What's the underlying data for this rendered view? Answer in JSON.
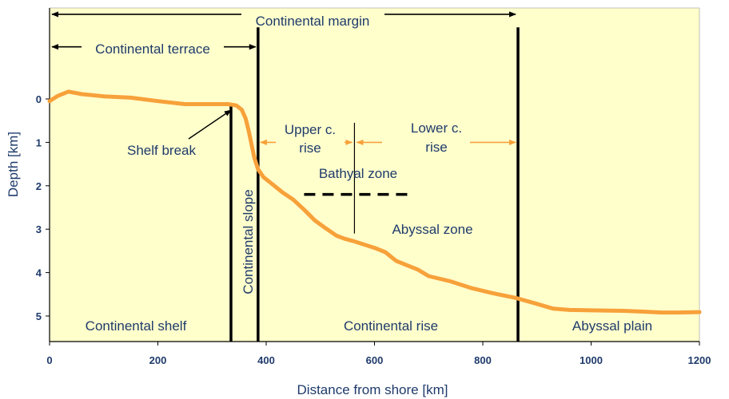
{
  "chart_data": {
    "type": "line",
    "xlabel": "Distance from shore [km]",
    "ylabel": "Depth [km]",
    "xlim": [
      0,
      1200
    ],
    "ylim": [
      0,
      5.6
    ],
    "x_ticks": [
      "0",
      "200",
      "400",
      "600",
      "800",
      "1000",
      "1200"
    ],
    "y_ticks": [
      "0",
      "1",
      "2",
      "3",
      "4",
      "5"
    ],
    "grid": false,
    "background": "#ffffcc",
    "profile_color": "#f7a13a",
    "profile": {
      "x": [
        0,
        15,
        35,
        60,
        100,
        150,
        200,
        250,
        300,
        330,
        345,
        355,
        362,
        368,
        373,
        378,
        385,
        395,
        410,
        430,
        450,
        470,
        490,
        510,
        530,
        545,
        560,
        580,
        600,
        620,
        640,
        660,
        680,
        700,
        740,
        780,
        820,
        860,
        900,
        930,
        960,
        1000,
        1060,
        1100,
        1130,
        1160,
        1200
      ],
      "y": [
        0.05,
        -0.07,
        -0.17,
        -0.11,
        -0.06,
        -0.03,
        0.05,
        0.12,
        0.12,
        0.12,
        0.15,
        0.25,
        0.45,
        0.75,
        1.05,
        1.35,
        1.62,
        1.8,
        1.95,
        2.15,
        2.32,
        2.55,
        2.8,
        2.98,
        3.15,
        3.22,
        3.27,
        3.35,
        3.43,
        3.53,
        3.73,
        3.83,
        3.93,
        4.08,
        4.2,
        4.36,
        4.48,
        4.58,
        4.72,
        4.83,
        4.86,
        4.87,
        4.88,
        4.9,
        4.92,
        4.92,
        4.91
      ]
    },
    "boundaries": [
      {
        "x": 335,
        "top_depth": 0.12
      },
      {
        "x": 385,
        "top_depth": -1.65
      },
      {
        "x": 865,
        "top_depth": -1.65
      }
    ],
    "thin_divider": {
      "x": 563,
      "from_depth": 0.55,
      "to_depth": 3.1
    },
    "bathyal_abyssal_line": {
      "x1": 470,
      "x2": 665,
      "depth": 2.2
    },
    "spans": [
      {
        "label": "Continental margin",
        "x1": 0,
        "x2": 865,
        "depth": -1.95,
        "color": "black"
      },
      {
        "label": "Continental terrace",
        "x1": 0,
        "x2": 385,
        "depth": -1.2,
        "color": "black"
      },
      {
        "label": "Upper c. rise",
        "x1": 385,
        "x2": 563,
        "depth": 1.0,
        "color": "orange"
      },
      {
        "label": "Lower c. rise",
        "x1": 563,
        "x2": 865,
        "depth": 1.0,
        "color": "orange"
      }
    ],
    "annotations": [
      "Shelf break",
      "Continental slope",
      "Bathyal zone",
      "Abyssal zone",
      "Continental shelf",
      "Continental rise",
      "Abyssal plain"
    ]
  },
  "labels": {
    "continental_margin": "Continental margin",
    "continental_terrace": "Continental terrace",
    "upper_rise_1": "Upper c.",
    "upper_rise_2": "rise",
    "lower_rise_1": "Lower c.",
    "lower_rise_2": "rise",
    "shelf_break": "Shelf break",
    "continental_slope": "Continental slope",
    "bathyal_zone": "Bathyal zone",
    "abyssal_zone": "Abyssal zone",
    "continental_shelf": "Continental shelf",
    "continental_rise": "Continental rise",
    "abyssal_plain": "Abyssal plain"
  }
}
